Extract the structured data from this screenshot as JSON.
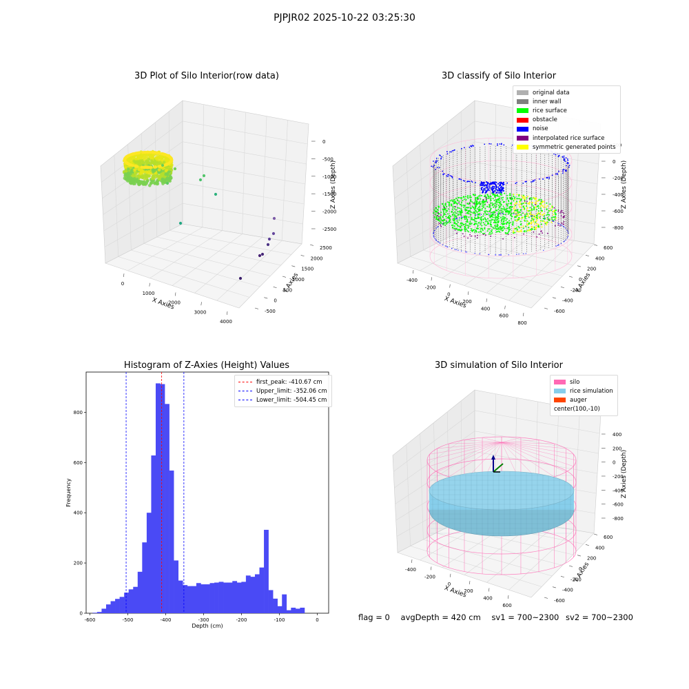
{
  "suptitle": "PJPJR02 2025-10-22 03:25:30",
  "footer": {
    "flag": "flag = 0",
    "avg_depth": "avgDepth = 420 cm",
    "sv1": "sv1 = 700~2300",
    "sv2": "sv2 = 700~2300"
  },
  "chart_data": [
    {
      "type": "scatter",
      "title": "3D Plot of Silo Interior(row data)",
      "xlabel": "X Axies",
      "ylabel": "Y Axies",
      "zlabel": "Z Axies (Depth)",
      "x_ticks": [
        "0",
        "1000",
        "2000",
        "3000",
        "4000"
      ],
      "y_ticks": [
        "-500",
        "0",
        "500",
        "1000",
        "1500",
        "2000",
        "2500"
      ],
      "z_ticks": [
        "0",
        "-500",
        "-1000",
        "-1500",
        "-2000",
        "-2500"
      ],
      "colormap": "viridis",
      "dense_cluster": {
        "x": [
          -500,
          800
        ],
        "y": [
          -700,
          700
        ],
        "z": [
          -600,
          -150
        ]
      },
      "outliers": [
        {
          "x": 1050,
          "y": -200,
          "z": -350
        },
        {
          "x": 1450,
          "y": 200,
          "z": -900
        },
        {
          "x": 1550,
          "y": 500,
          "z": -750
        },
        {
          "x": 1900,
          "y": 900,
          "z": -1100
        },
        {
          "x": 1500,
          "y": 1800,
          "z": -1700
        },
        {
          "x": 3800,
          "y": 2100,
          "z": -2300
        },
        {
          "x": 3700,
          "y": 1900,
          "z": -2500
        },
        {
          "x": 3600,
          "y": 1700,
          "z": -2600
        },
        {
          "x": 3500,
          "y": 1600,
          "z": -2800
        },
        {
          "x": 3400,
          "y": 1500,
          "z": -2850
        },
        {
          "x": 3300,
          "y": 1400,
          "z": -2950
        },
        {
          "x": 3500,
          "y": 1000,
          "z": -3100
        }
      ]
    },
    {
      "type": "scatter",
      "title": "3D classify of Silo Interior",
      "xlabel": "X Axies",
      "ylabel": "Y Axies",
      "zlabel": "Z Axies (Depth)",
      "x_ticks": [
        "-400",
        "-200",
        "0",
        "200",
        "400",
        "600",
        "800"
      ],
      "y_ticks": [
        "-600",
        "-400",
        "-200",
        "0",
        "200",
        "400",
        "600"
      ],
      "z_ticks": [
        "200",
        "0",
        "-200",
        "-400",
        "-600",
        "-800"
      ],
      "legend": [
        {
          "label": "original data",
          "color": "#b0b0b0"
        },
        {
          "label": "inner wall",
          "color": "#808080"
        },
        {
          "label": "rice surface",
          "color": "#00ff00"
        },
        {
          "label": "obstacle",
          "color": "#ff0000"
        },
        {
          "label": "noise",
          "color": "#0000ff"
        },
        {
          "label": "interpolated rice surface",
          "color": "#800080"
        },
        {
          "label": "symmetric generated points",
          "color": "#ffff00"
        }
      ]
    },
    {
      "type": "bar",
      "title": "Histogram of Z-Axies (Height) Values",
      "xlabel": "Depth (cm)",
      "ylabel": "Frequency",
      "bar_color": "#4a4af5",
      "bin_width": 11.9,
      "bin_start": -593,
      "xlim": [
        -610,
        30
      ],
      "ylim": [
        0,
        960
      ],
      "x_ticks": [
        -600,
        -500,
        -400,
        -300,
        -200,
        -100,
        0
      ],
      "y_ticks": [
        0,
        200,
        400,
        600,
        800
      ],
      "values": [
        2,
        5,
        18,
        35,
        48,
        57,
        65,
        82,
        95,
        105,
        165,
        282,
        400,
        628,
        915,
        912,
        833,
        568,
        210,
        130,
        112,
        108,
        108,
        120,
        115,
        115,
        120,
        122,
        125,
        122,
        122,
        128,
        122,
        125,
        150,
        145,
        155,
        182,
        332,
        92,
        58,
        28,
        75,
        12,
        22,
        18,
        22
      ],
      "vlines": [
        {
          "label": "first_peak: -410.67 cm",
          "x": -410.67,
          "color": "#ff0000"
        },
        {
          "label": "Upper_limit: -352.06 cm",
          "x": -352.06,
          "color": "#0000ff"
        },
        {
          "label": "Lower_limit: -504.45 cm",
          "x": -504.45,
          "color": "#0000ff"
        }
      ]
    },
    {
      "type": "area",
      "title": "3D simulation of Silo Interior",
      "xlabel": "X Axies",
      "ylabel": "Y Axies",
      "zlabel": "Z Axies (Depth)",
      "x_ticks": [
        "-400",
        "-200",
        "0",
        "200",
        "400",
        "600"
      ],
      "y_ticks": [
        "-600",
        "-400",
        "-200",
        "0",
        "200",
        "400",
        "600"
      ],
      "z_ticks": [
        "400",
        "200",
        "0",
        "-200",
        "-400",
        "-600",
        "-800"
      ],
      "legend": [
        {
          "label": "silo",
          "color": "#ff69b4"
        },
        {
          "label": "rice simulation",
          "color": "#87ceeb"
        },
        {
          "label": "auger",
          "color": "#ff4500"
        },
        {
          "label": "center(100,-10)",
          "color": ""
        }
      ]
    }
  ]
}
